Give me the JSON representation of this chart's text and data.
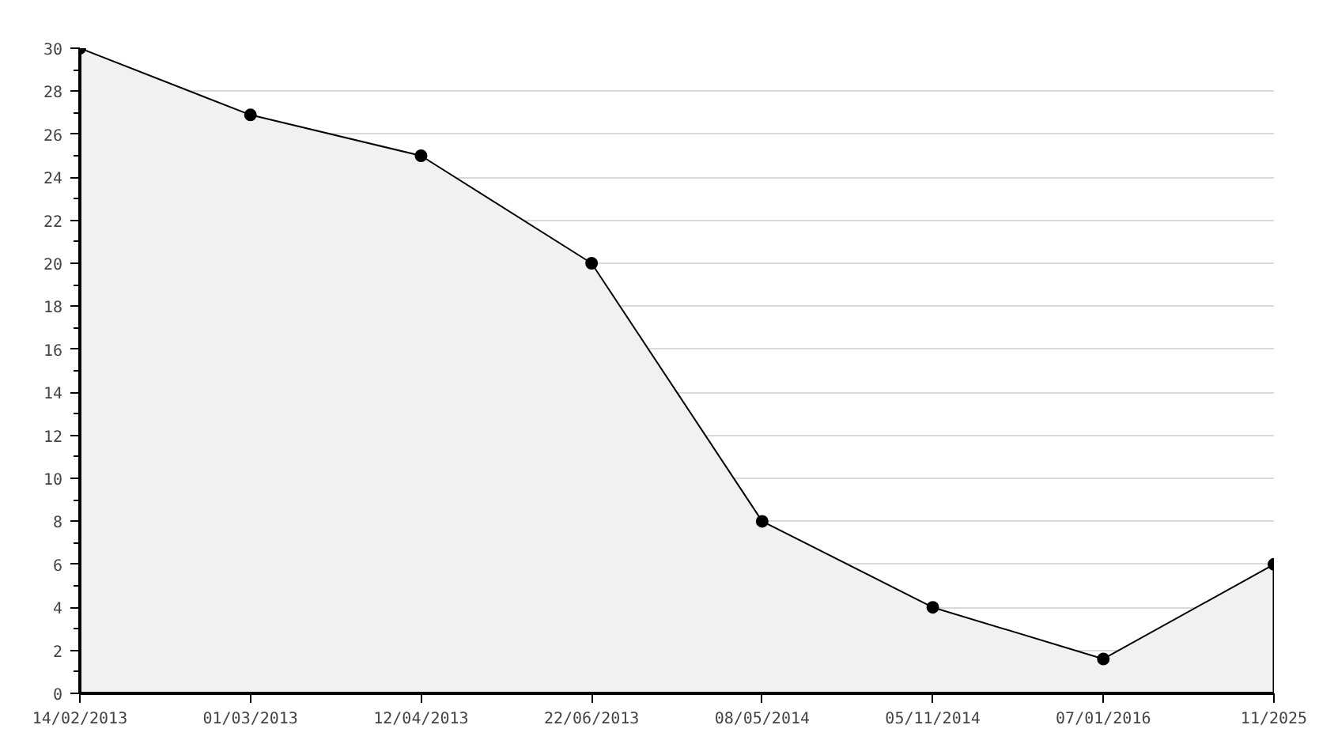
{
  "chart_data": {
    "type": "area",
    "categories": [
      "14/02/2013",
      "01/03/2013",
      "12/04/2013",
      "22/06/2013",
      "08/05/2014",
      "05/11/2014",
      "07/01/2016",
      "11/2025"
    ],
    "series": [
      {
        "color": "#f1f1f1",
        "values": [
          30,
          26.9,
          25,
          20,
          8,
          4,
          1.6,
          6
        ]
      }
    ],
    "ylim": [
      0,
      30
    ],
    "yticks": [
      0,
      2,
      4,
      6,
      8,
      10,
      12,
      14,
      16,
      18,
      20,
      22,
      24,
      26,
      28,
      30
    ],
    "grid": "y",
    "marker": "circle",
    "line_style": "solid"
  }
}
